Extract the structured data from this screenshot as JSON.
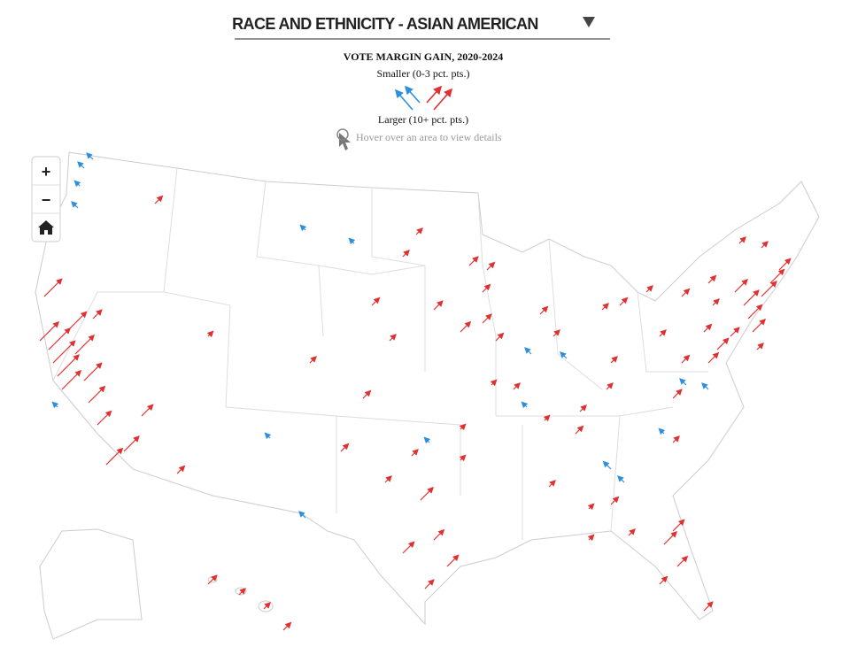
{
  "header": {
    "title": "RACE AND ETHNICITY - ASIAN AMERICAN"
  },
  "legend": {
    "title": "VOTE MARGIN GAIN, 2020-2024",
    "smaller": "Smaller (0-3 pct. pts.)",
    "larger": "Larger (10+ pct. pts.)",
    "hint": "Hover over an area to view details"
  },
  "zoom": {
    "in": "+",
    "out": "−"
  }
}
